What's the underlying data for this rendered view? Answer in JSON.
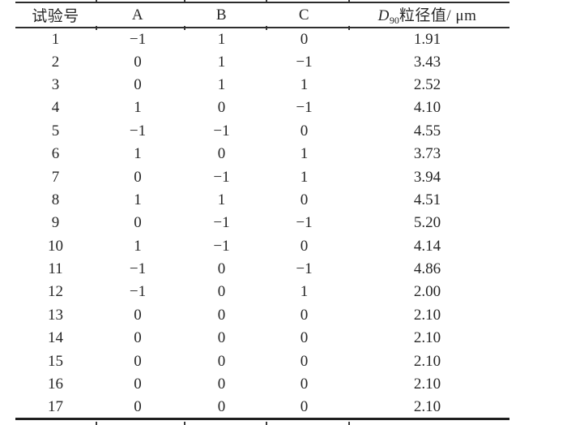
{
  "page": {
    "background": "#ffffff",
    "text_color": "#262626",
    "rule_color": "#2b2b2b"
  },
  "table": {
    "type": "table",
    "column_keys": [
      "run",
      "a",
      "b",
      "c",
      "d90"
    ],
    "header": {
      "run": "试验号",
      "a": "A",
      "b": "B",
      "c": "C",
      "d_symbol": "D",
      "d_subscript": "90",
      "d_rest": "粒径值/ μm"
    },
    "rows": [
      [
        "1",
        "−1",
        "1",
        "0",
        "1.91"
      ],
      [
        "2",
        "0",
        "1",
        "−1",
        "3.43"
      ],
      [
        "3",
        "0",
        "1",
        "1",
        "2.52"
      ],
      [
        "4",
        "1",
        "0",
        "−1",
        "4.10"
      ],
      [
        "5",
        "−1",
        "−1",
        "0",
        "4.55"
      ],
      [
        "6",
        "1",
        "0",
        "1",
        "3.73"
      ],
      [
        "7",
        "0",
        "−1",
        "1",
        "3.94"
      ],
      [
        "8",
        "1",
        "1",
        "0",
        "4.51"
      ],
      [
        "9",
        "0",
        "−1",
        "−1",
        "5.20"
      ],
      [
        "10",
        "1",
        "−1",
        "0",
        "4.14"
      ],
      [
        "11",
        "−1",
        "0",
        "−1",
        "4.86"
      ],
      [
        "12",
        "−1",
        "0",
        "1",
        "2.00"
      ],
      [
        "13",
        "0",
        "0",
        "0",
        "2.10"
      ],
      [
        "14",
        "0",
        "0",
        "0",
        "2.10"
      ],
      [
        "15",
        "0",
        "0",
        "0",
        "2.10"
      ],
      [
        "16",
        "0",
        "0",
        "0",
        "2.10"
      ],
      [
        "17",
        "0",
        "0",
        "0",
        "2.10"
      ]
    ]
  }
}
